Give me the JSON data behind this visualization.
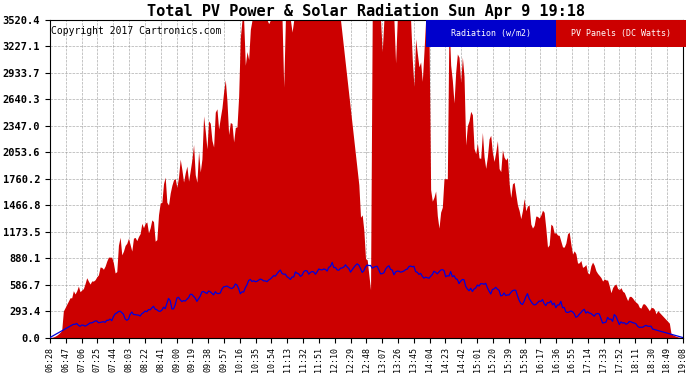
{
  "title": "Total PV Power & Solar Radiation Sun Apr 9 19:18",
  "copyright": "Copyright 2017 Cartronics.com",
  "yticks": [
    0.0,
    293.4,
    586.7,
    880.1,
    1173.5,
    1466.8,
    1760.2,
    2053.6,
    2347.0,
    2640.3,
    2933.7,
    3227.1,
    3520.4
  ],
  "ymax": 3520.4,
  "background_color": "#ffffff",
  "grid_color": "#999999",
  "fill_color": "#cc0000",
  "line_color": "#0000dd",
  "legend_radiation_bg": "#0000cc",
  "legend_pv_bg": "#cc0000",
  "legend_radiation_text": "Radiation (w/m2)",
  "legend_pv_text": "PV Panels (DC Watts)",
  "title_fontsize": 11,
  "copyright_fontsize": 7,
  "tick_fontsize": 6,
  "ytick_fontsize": 7.5,
  "xtick_labels": [
    "06:28",
    "06:47",
    "07:06",
    "07:25",
    "07:44",
    "08:03",
    "08:22",
    "08:41",
    "09:00",
    "09:19",
    "09:38",
    "09:57",
    "10:16",
    "10:35",
    "10:54",
    "11:13",
    "11:32",
    "11:51",
    "12:10",
    "12:29",
    "12:48",
    "13:07",
    "13:26",
    "13:45",
    "14:04",
    "14:23",
    "14:42",
    "15:01",
    "15:20",
    "15:39",
    "15:58",
    "16:17",
    "16:36",
    "16:55",
    "17:14",
    "17:33",
    "17:52",
    "18:11",
    "18:30",
    "18:49",
    "19:08"
  ]
}
